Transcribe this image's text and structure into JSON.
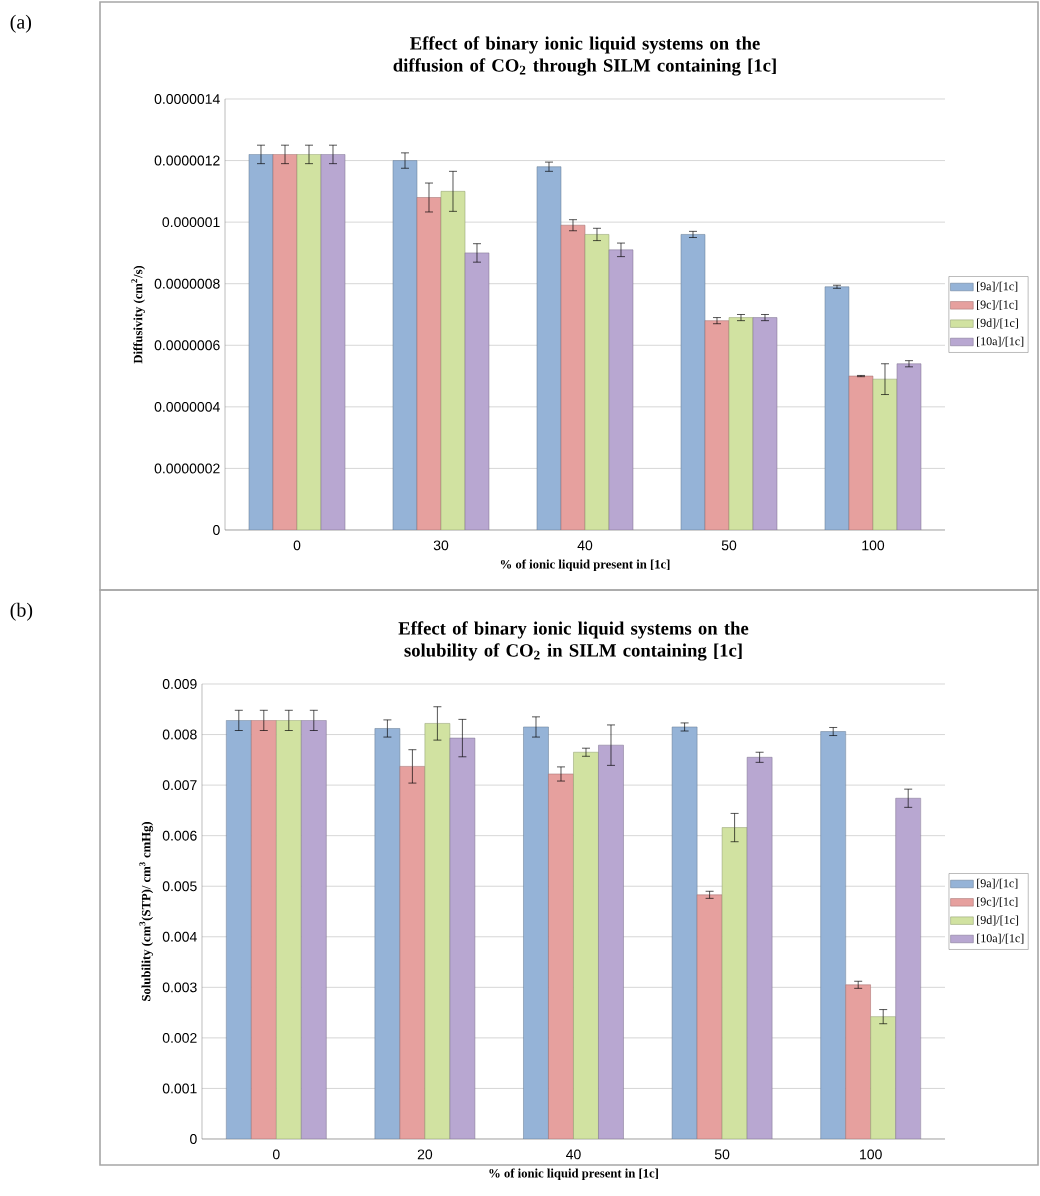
{
  "chart_data": [
    {
      "type": "bar",
      "title": "Effect of binary ionic liquid systems on the diffusion of CO$_{2}$ through SILM containing [1c]",
      "xlabel": "% of ionic liquid present in [1c]",
      "ylabel": "Diffusivity (cm$^{2}$/s)",
      "annotations": [
        "(a)"
      ],
      "categories": [
        "0",
        "30",
        "40",
        "50",
        "100"
      ],
      "ylim": [
        0,
        1.4e-06
      ],
      "yticks": [
        {
          "value": 0,
          "label": "0"
        },
        {
          "value": 2e-07,
          "label": "0.0000002"
        },
        {
          "value": 4e-07,
          "label": "0.0000004"
        },
        {
          "value": 6e-07,
          "label": "0.0000006"
        },
        {
          "value": 8e-07,
          "label": "0.0000008"
        },
        {
          "value": 1e-06,
          "label": "0.000001"
        },
        {
          "value": 1.2e-06,
          "label": "0.0000012"
        },
        {
          "value": 1.4e-06,
          "label": "0.0000014"
        }
      ],
      "grid": "y",
      "legend": "right",
      "series": [
        {
          "name": "[9a]/[1c]",
          "color": "#95b3d7",
          "values": [
            1.22e-06,
            1.2e-06,
            1.18e-06,
            9.6e-07,
            7.9e-07
          ],
          "errors": [
            3e-08,
            2.5e-08,
            1.5e-08,
            1e-08,
            5e-09
          ]
        },
        {
          "name": "[9c]/[1c]",
          "color": "#e6a09e",
          "values": [
            1.22e-06,
            1.08e-06,
            9.9e-07,
            6.8e-07,
            5e-07
          ],
          "errors": [
            3e-08,
            4.7e-08,
            1.8e-08,
            1e-08,
            2e-09
          ]
        },
        {
          "name": "[9d]/[1c]",
          "color": "#d1e2a1",
          "values": [
            1.22e-06,
            1.1e-06,
            9.6e-07,
            6.9e-07,
            4.9e-07
          ],
          "errors": [
            3e-08,
            6.5e-08,
            2e-08,
            1e-08,
            5e-08
          ]
        },
        {
          "name": "[10a]/[1c]",
          "color": "#b8a7d1",
          "values": [
            1.22e-06,
            9e-07,
            9.1e-07,
            6.9e-07,
            5.4e-07
          ],
          "errors": [
            3e-08,
            3e-08,
            2.2e-08,
            1e-08,
            1e-08
          ]
        }
      ]
    },
    {
      "type": "bar",
      "title": "Effect of binary ionic liquid systems on the solubility of CO$_{2}$ in SILM containing [1c]",
      "xlabel": "% of ionic liquid present in [1c]",
      "ylabel": "Solubility (cm$^{3}$(STP)/ cm$^{3}$ cmHg)",
      "annotations": [
        "(b)"
      ],
      "categories": [
        "0",
        "20",
        "40",
        "50",
        "100"
      ],
      "ylim": [
        0,
        0.009
      ],
      "yticks": [
        0,
        0.001,
        0.002,
        0.003,
        0.004,
        0.005,
        0.006,
        0.007,
        0.008,
        0.009
      ],
      "grid": "y",
      "legend": "right",
      "series": [
        {
          "name": "[9a]/[1c]",
          "color": "#95b3d7",
          "values": [
            0.00828,
            0.00812,
            0.00815,
            0.00815,
            0.00806
          ],
          "errors": [
            0.0002,
            0.00017,
            0.0002,
            8e-05,
            8e-05
          ]
        },
        {
          "name": "[9c]/[1c]",
          "color": "#e6a09e",
          "values": [
            0.00828,
            0.00737,
            0.00722,
            0.00483,
            0.00305
          ],
          "errors": [
            0.0002,
            0.00033,
            0.00014,
            7e-05,
            7e-05
          ]
        },
        {
          "name": "[9d]/[1c]",
          "color": "#d1e2a1",
          "values": [
            0.00828,
            0.00822,
            0.00765,
            0.00616,
            0.00242
          ],
          "errors": [
            0.0002,
            0.00033,
            8e-05,
            0.00028,
            0.00014
          ]
        },
        {
          "name": "[10a]/[1c]",
          "color": "#b8a7d1",
          "values": [
            0.00828,
            0.00793,
            0.00779,
            0.00755,
            0.00674
          ],
          "errors": [
            0.0002,
            0.00037,
            0.0004,
            0.0001,
            0.00018
          ]
        }
      ]
    }
  ]
}
